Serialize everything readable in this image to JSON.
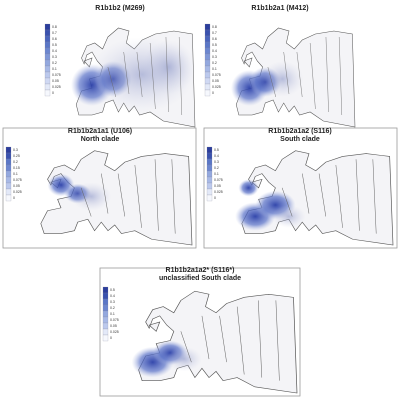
{
  "panels": [
    {
      "title": [
        "R1b1b2 (M269)"
      ],
      "legend": [
        "0.8",
        "0.7",
        "0.6",
        "0.5",
        "0.4",
        "0.3",
        "0.2",
        "0.1",
        "0.075",
        "0.05",
        "0.025",
        "0"
      ]
    },
    {
      "title": [
        "R1b1b2a1 (M412)"
      ],
      "legend": [
        "0.8",
        "0.7",
        "0.6",
        "0.5",
        "0.4",
        "0.3",
        "0.2",
        "0.1",
        "0.075",
        "0.05",
        "0.025",
        "0"
      ]
    },
    {
      "title": [
        "R1b1b2a1a1 (U106)",
        "North clade"
      ],
      "legend": [
        "0.3",
        "0.25",
        "0.2",
        "0.15",
        "0.1",
        "0.075",
        "0.05",
        "0.025",
        "0"
      ]
    },
    {
      "title": [
        "R1b1b2a1a2 (S116)",
        "South clade"
      ],
      "legend": [
        "0.5",
        "0.4",
        "0.3",
        "0.2",
        "0.1",
        "0.075",
        "0.05",
        "0.025",
        "0"
      ]
    },
    {
      "title": [
        "R1b1b2a1a2* (S116*)",
        "unclassified South clade"
      ],
      "legend": [
        "0.5",
        "0.4",
        "0.3",
        "0.2",
        "0.1",
        "0.075",
        "0.05",
        "0.025",
        "0"
      ]
    }
  ]
}
